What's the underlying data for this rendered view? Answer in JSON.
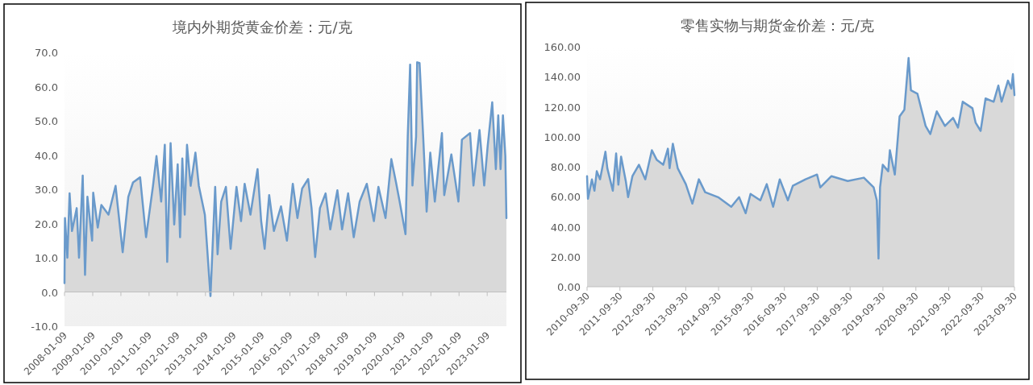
{
  "chart_data": [
    {
      "type": "area",
      "title": "境内外期货黄金价差：元/克",
      "xlim": [
        "2008-01-09",
        "2023-09-15"
      ],
      "ylim": [
        -10,
        70
      ],
      "xticks": [
        "2008-01-09",
        "2009-01-09",
        "2010-01-09",
        "2011-01-09",
        "2012-01-09",
        "2013-01-09",
        "2014-01-09",
        "2015-01-09",
        "2016-01-09",
        "2017-01-09",
        "2018-01-09",
        "2019-01-09",
        "2020-01-09",
        "2021-01-09",
        "2022-01-09",
        "2023-01-09"
      ],
      "yticks": [
        {
          "value": -10,
          "label": "-10.0"
        },
        {
          "value": 0,
          "label": "0.0"
        },
        {
          "value": 10,
          "label": "10.0"
        },
        {
          "value": 20,
          "label": "20.0"
        },
        {
          "value": 30,
          "label": "30.0"
        },
        {
          "value": 40,
          "label": "40.0"
        },
        {
          "value": 50,
          "label": "50.0"
        },
        {
          "value": 60,
          "label": "60.0"
        },
        {
          "value": 70,
          "label": "70.0"
        }
      ],
      "series": [
        {
          "color": "#6a9acb",
          "x": [
            "2008-01-09",
            "2008-01-15",
            "2008-02-15",
            "2008-03-15",
            "2008-04-15",
            "2008-06-15",
            "2008-07-15",
            "2008-09-01",
            "2008-10-01",
            "2008-11-01",
            "2009-01-01",
            "2009-01-15",
            "2009-03-15",
            "2009-05-01",
            "2009-08-01",
            "2009-11-01",
            "2010-02-01",
            "2010-04-15",
            "2010-06-15",
            "2010-09-15",
            "2010-12-01",
            "2011-03-01",
            "2011-04-15",
            "2011-06-15",
            "2011-08-01",
            "2011-09-01",
            "2011-10-15",
            "2011-12-01",
            "2012-01-15",
            "2012-02-15",
            "2012-03-15",
            "2012-04-15",
            "2012-05-15",
            "2012-07-01",
            "2012-09-01",
            "2012-10-15",
            "2013-01-01",
            "2013-03-15",
            "2013-05-15",
            "2013-06-15",
            "2013-08-01",
            "2013-10-01",
            "2013-12-01",
            "2014-02-15",
            "2014-04-15",
            "2014-06-01",
            "2014-08-15",
            "2014-11-15",
            "2015-01-01",
            "2015-02-15",
            "2015-04-15",
            "2015-06-15",
            "2015-09-15",
            "2015-12-01",
            "2016-02-15",
            "2016-04-15",
            "2016-06-15",
            "2016-09-01",
            "2016-10-15",
            "2016-12-01",
            "2017-02-01",
            "2017-04-15",
            "2017-06-15",
            "2017-09-15",
            "2017-11-15",
            "2018-02-01",
            "2018-04-15",
            "2018-07-01",
            "2018-10-01",
            "2019-01-01",
            "2019-03-01",
            "2019-06-01",
            "2019-08-15",
            "2019-10-15",
            "2019-12-01",
            "2020-02-15",
            "2020-03-15",
            "2020-04-15",
            "2020-05-15",
            "2020-07-01",
            "2020-07-15",
            "2020-08-15",
            "2020-10-01",
            "2020-11-15",
            "2021-01-01",
            "2021-03-01",
            "2021-06-01",
            "2021-07-01",
            "2021-10-01",
            "2022-01-01",
            "2022-02-15",
            "2022-06-01",
            "2022-07-15",
            "2022-10-01",
            "2022-12-01",
            "2023-01-15",
            "2023-03-15",
            "2023-05-01",
            "2023-06-01",
            "2023-07-01",
            "2023-08-01",
            "2023-09-01",
            "2023-09-15"
          ],
          "values": [
            2.6,
            21.6,
            10,
            28.8,
            17.8,
            24.5,
            10,
            34,
            5,
            27.8,
            15,
            29,
            18.8,
            25.4,
            22.6,
            31,
            11.6,
            27.8,
            32,
            33.5,
            16,
            31,
            39.7,
            26.4,
            43,
            8.8,
            43.5,
            19.7,
            37.3,
            16,
            39,
            22.6,
            43,
            31,
            40.7,
            31,
            22.6,
            -1.2,
            30.7,
            11,
            26.4,
            30.7,
            12.6,
            30.7,
            20.7,
            31.6,
            22.6,
            35.9,
            20.7,
            12.6,
            28.3,
            17.8,
            25,
            15,
            31.6,
            21.6,
            30.2,
            33,
            24.5,
            10.2,
            24.5,
            28.8,
            18.3,
            29.7,
            18.3,
            28.8,
            16,
            26.4,
            31.6,
            20.7,
            30.7,
            21.6,
            38.8,
            32,
            26.4,
            16.9,
            45.4,
            66.4,
            31.1,
            45.4,
            67.1,
            66.9,
            45.4,
            23.5,
            40.7,
            26.4,
            46.4,
            28.3,
            40.2,
            26.4,
            44.5,
            46.4,
            31.1,
            47.3,
            31.1,
            42.6,
            55.4,
            35.9,
            51.6,
            35.9,
            51.6,
            39.7,
            21.6
          ]
        }
      ]
    },
    {
      "type": "area",
      "title": "零售实物与期货金价差：元/克",
      "xlim": [
        "2010-09-30",
        "2023-09-30"
      ],
      "ylim": [
        0,
        160
      ],
      "xticks": [
        "2010-09-30",
        "2011-09-30",
        "2012-09-30",
        "2013-09-30",
        "2014-09-30",
        "2015-09-30",
        "2016-09-30",
        "2017-09-30",
        "2018-09-30",
        "2019-09-30",
        "2020-09-30",
        "2021-09-30",
        "2022-09-30",
        "2023-09-30"
      ],
      "yticks": [
        {
          "value": 0,
          "label": "0.00"
        },
        {
          "value": 20,
          "label": "20.00"
        },
        {
          "value": 40,
          "label": "40.00"
        },
        {
          "value": 60,
          "label": "60.00"
        },
        {
          "value": 80,
          "label": "80.00"
        },
        {
          "value": 100,
          "label": "100.00"
        },
        {
          "value": 120,
          "label": "120.00"
        },
        {
          "value": 140,
          "label": "140.00"
        },
        {
          "value": 160,
          "label": "160.00"
        }
      ],
      "series": [
        {
          "color": "#6a9acb",
          "x": [
            "2010-09-30",
            "2010-10-10",
            "2010-11-23",
            "2010-12-21",
            "2011-01-16",
            "2011-02-21",
            "2011-04-22",
            "2011-05-13",
            "2011-07-13",
            "2011-08-19",
            "2011-09-13",
            "2011-10-13",
            "2011-12-04",
            "2011-12-30",
            "2012-02-16",
            "2012-04-28",
            "2012-07-08",
            "2012-09-19",
            "2012-11-13",
            "2013-01-23",
            "2013-03-16",
            "2013-04-04",
            "2013-05-10",
            "2013-07-03",
            "2013-10-01",
            "2013-12-13",
            "2014-02-23",
            "2014-05-04",
            "2014-09-25",
            "2015-02-18",
            "2015-05-16",
            "2015-07-28",
            "2015-09-20",
            "2016-01-07",
            "2016-03-18",
            "2016-05-28",
            "2016-08-10",
            "2016-11-08",
            "2017-01-02",
            "2017-05-23",
            "2017-09-28",
            "2017-11-03",
            "2018-03-07",
            "2018-09-04",
            "2019-03-02",
            "2019-06-19",
            "2019-07-24",
            "2019-08-12",
            "2019-08-29",
            "2019-09-28",
            "2019-11-28",
            "2019-12-16",
            "2020-02-09",
            "2020-04-02",
            "2020-05-25",
            "2020-07-11",
            "2020-08-06",
            "2020-10-17",
            "2021-01-16",
            "2021-03-09",
            "2021-05-20",
            "2021-08-19",
            "2021-11-17",
            "2022-01-11",
            "2022-03-04",
            "2022-06-20",
            "2022-07-26",
            "2022-09-19",
            "2022-11-13",
            "2023-02-11",
            "2023-04-04",
            "2023-05-10",
            "2023-07-20",
            "2023-08-26",
            "2023-09-13",
            "2023-09-30"
          ],
          "values": [
            73.7,
            58.7,
            71.6,
            64,
            77,
            71.6,
            90,
            79,
            64,
            88.8,
            68,
            86.7,
            70.5,
            59.7,
            73.7,
            81.3,
            71.6,
            91,
            84.5,
            81.3,
            92,
            79,
            95.3,
            79,
            68.4,
            55.4,
            71.6,
            63,
            59.7,
            53.3,
            59.7,
            49,
            61.9,
            57.6,
            68.4,
            53.3,
            71.6,
            57.6,
            67.3,
            71.6,
            74.8,
            66.2,
            73.7,
            70.5,
            72.7,
            66.2,
            57.6,
            18.8,
            66.2,
            81.3,
            77,
            91,
            74.8,
            113.6,
            118,
            152.5,
            130.9,
            128.7,
            107.2,
            101.8,
            116.9,
            107.2,
            112.6,
            106.1,
            123.3,
            119,
            109.3,
            103.9,
            125.5,
            123.3,
            134.1,
            123.3,
            137.4,
            132,
            141.7,
            127.7
          ]
        }
      ]
    }
  ]
}
